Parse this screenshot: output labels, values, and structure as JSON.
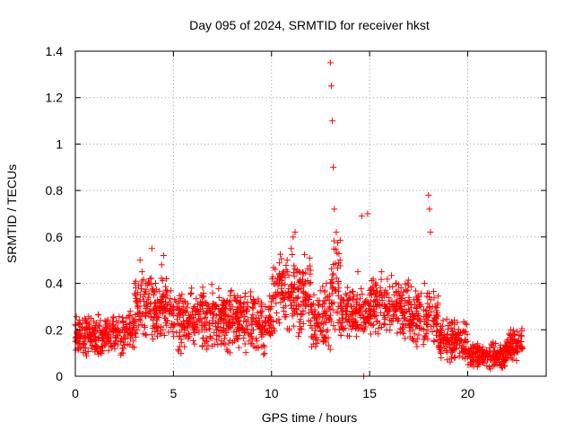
{
  "chart_data": {
    "type": "scatter",
    "title": "Day 095 of 2024, SRMTID for receiver hkst",
    "xlabel": "GPS time / hours",
    "ylabel": "SRMTID / TECUs",
    "xlim": [
      0,
      24
    ],
    "ylim": [
      0,
      1.4
    ],
    "grid": true,
    "marker": "+",
    "color": "#ff0000",
    "xticks": [
      {
        "value": 0,
        "label": "0"
      },
      {
        "value": 5,
        "label": "5"
      },
      {
        "value": 10,
        "label": "10"
      },
      {
        "value": 15,
        "label": "15"
      },
      {
        "value": 20,
        "label": "20"
      }
    ],
    "yticks": [
      {
        "value": 0,
        "label": "0"
      },
      {
        "value": 0.2,
        "label": "0.2"
      },
      {
        "value": 0.4,
        "label": "0.4"
      },
      {
        "value": 0.6,
        "label": "0.6"
      },
      {
        "value": 0.8,
        "label": "0.8"
      },
      {
        "value": 1.0,
        "label": "1"
      },
      {
        "value": 1.2,
        "label": "1.2"
      },
      {
        "value": 1.4,
        "label": "1.4"
      }
    ],
    "series": [
      {
        "name": "SRMTID",
        "x": [
          0.0,
          0.2,
          0.4,
          0.6,
          0.8,
          1.0,
          1.2,
          1.4,
          1.6,
          1.8,
          2.0,
          2.2,
          2.4,
          2.6,
          2.8,
          3.0,
          3.2,
          3.3,
          3.4,
          3.6,
          3.8,
          3.9,
          4.0,
          4.2,
          4.4,
          4.5,
          4.6,
          4.8,
          5.0,
          5.2,
          5.4,
          5.6,
          5.8,
          6.0,
          6.2,
          6.4,
          6.6,
          6.8,
          7.0,
          7.2,
          7.4,
          7.6,
          7.8,
          8.0,
          8.2,
          8.4,
          8.6,
          8.8,
          9.0,
          9.2,
          9.4,
          9.6,
          9.8,
          10.0,
          10.2,
          10.4,
          10.6,
          10.8,
          11.0,
          11.1,
          11.2,
          11.4,
          11.6,
          11.8,
          12.0,
          12.2,
          12.4,
          12.6,
          12.8,
          13.0,
          13.05,
          13.1,
          13.15,
          13.2,
          13.3,
          13.4,
          13.6,
          13.8,
          14.0,
          14.2,
          14.4,
          14.6,
          14.7,
          14.9,
          15.0,
          15.2,
          15.4,
          15.6,
          15.8,
          16.0,
          16.2,
          16.4,
          16.6,
          16.8,
          17.0,
          17.2,
          17.4,
          17.6,
          17.8,
          18.0,
          18.05,
          18.1,
          18.2,
          18.4,
          18.6,
          18.8,
          19.0,
          19.2,
          19.4,
          19.6,
          19.8,
          20.0,
          20.2,
          20.4,
          20.6,
          20.8,
          21.0,
          21.2,
          21.4,
          21.6,
          21.8,
          22.0,
          22.2,
          22.4,
          22.6,
          22.8
        ],
        "y": [
          0.15,
          0.18,
          0.14,
          0.2,
          0.16,
          0.12,
          0.22,
          0.18,
          0.15,
          0.17,
          0.14,
          0.19,
          0.2,
          0.25,
          0.28,
          0.24,
          0.3,
          0.5,
          0.45,
          0.4,
          0.42,
          0.55,
          0.35,
          0.3,
          0.48,
          0.52,
          0.25,
          0.28,
          0.3,
          0.26,
          0.22,
          0.32,
          0.25,
          0.2,
          0.28,
          0.35,
          0.22,
          0.3,
          0.24,
          0.2,
          0.28,
          0.32,
          0.26,
          0.3,
          0.25,
          0.22,
          0.28,
          0.3,
          0.2,
          0.25,
          0.22,
          0.18,
          0.24,
          0.3,
          0.35,
          0.4,
          0.45,
          0.5,
          0.55,
          0.6,
          0.62,
          0.45,
          0.4,
          0.35,
          0.3,
          0.25,
          0.22,
          0.3,
          0.4,
          1.35,
          1.25,
          1.1,
          0.9,
          0.72,
          0.62,
          0.3,
          0.25,
          0.28,
          0.22,
          0.3,
          0.45,
          0.69,
          0.0,
          0.7,
          0.35,
          0.28,
          0.32,
          0.45,
          0.3,
          0.28,
          0.25,
          0.32,
          0.3,
          0.25,
          0.22,
          0.2,
          0.28,
          0.3,
          0.4,
          0.78,
          0.72,
          0.62,
          0.3,
          0.25,
          0.2,
          0.18,
          0.15,
          0.12,
          0.14,
          0.1,
          0.12,
          0.1,
          0.08,
          0.07,
          0.06,
          0.08,
          0.1,
          0.07,
          0.08,
          0.06,
          0.1,
          0.15,
          0.2,
          0.18,
          0.15,
          0.12
        ],
        "ranges": [
          {
            "from": 0,
            "to": 3,
            "lo": 0.08,
            "hi": 0.28
          },
          {
            "from": 3,
            "to": 5,
            "lo": 0.15,
            "hi": 0.45
          },
          {
            "from": 5,
            "to": 10,
            "lo": 0.08,
            "hi": 0.4
          },
          {
            "from": 10,
            "to": 12,
            "lo": 0.15,
            "hi": 0.55
          },
          {
            "from": 12,
            "to": 13,
            "lo": 0.1,
            "hi": 0.4
          },
          {
            "from": 13,
            "to": 13.5,
            "lo": 0.15,
            "hi": 0.65
          },
          {
            "from": 13.5,
            "to": 15,
            "lo": 0.15,
            "hi": 0.4
          },
          {
            "from": 15,
            "to": 17,
            "lo": 0.15,
            "hi": 0.45
          },
          {
            "from": 17,
            "to": 18.5,
            "lo": 0.1,
            "hi": 0.4
          },
          {
            "from": 18.5,
            "to": 20,
            "lo": 0.05,
            "hi": 0.25
          },
          {
            "from": 20,
            "to": 22,
            "lo": 0.03,
            "hi": 0.15
          },
          {
            "from": 22,
            "to": 22.8,
            "lo": 0.06,
            "hi": 0.22
          }
        ]
      }
    ]
  }
}
